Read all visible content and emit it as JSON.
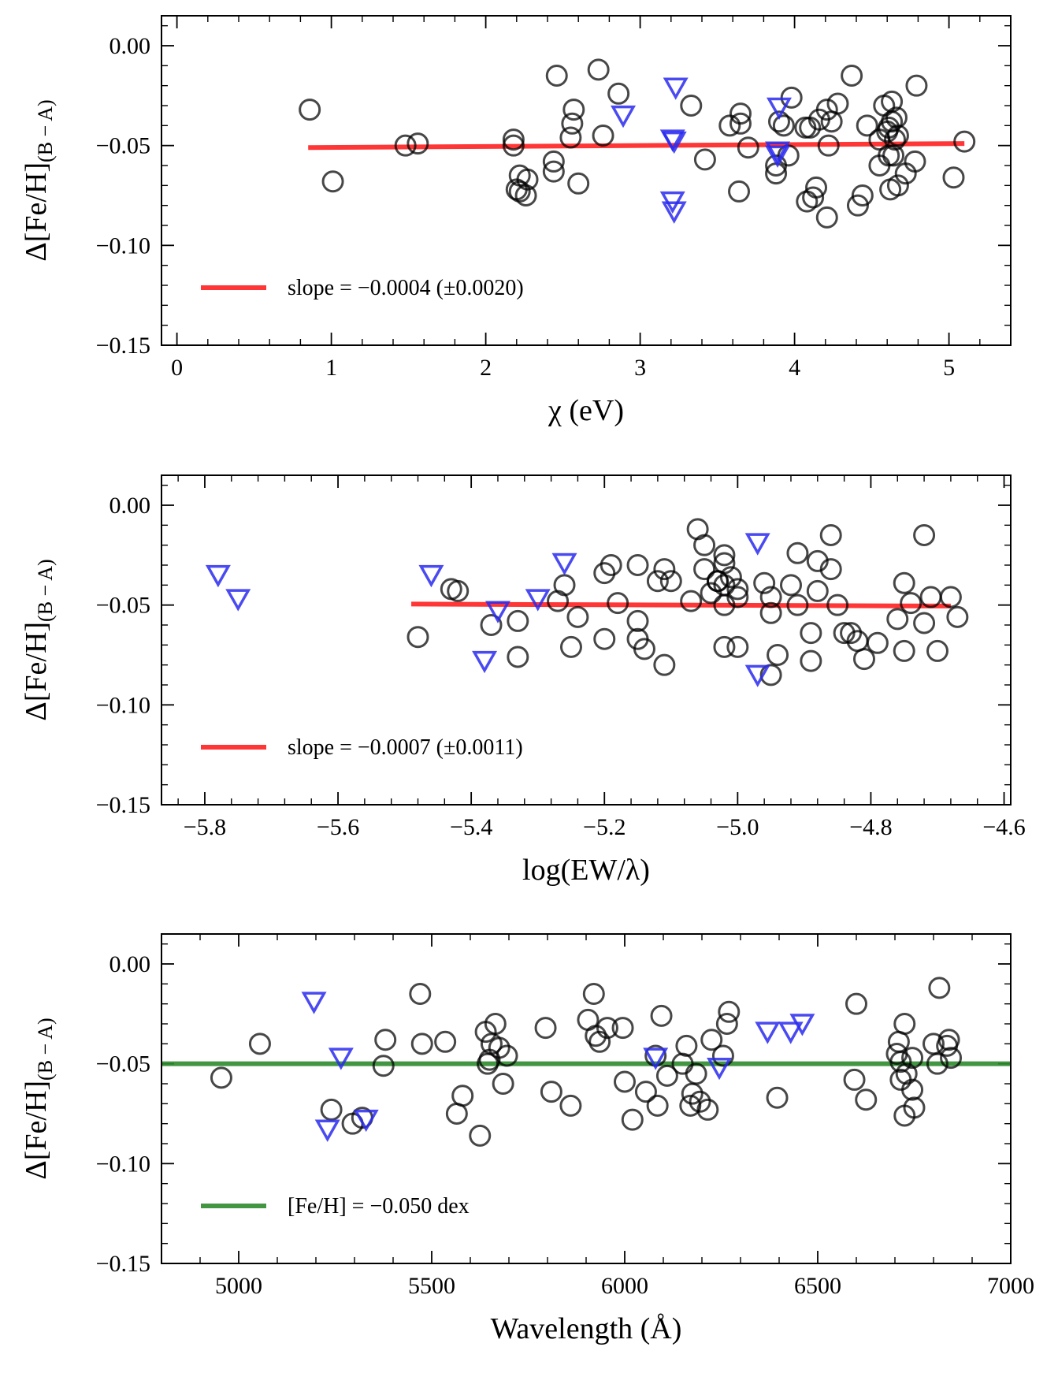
{
  "chart_data": [
    {
      "type": "scatter",
      "xlabel": "χ (eV)",
      "ylabel": "Δ[Fe/H]",
      "ylabel_sub": "(B − A)",
      "xlim": [
        -0.1,
        5.4
      ],
      "ylim": [
        -0.15,
        0.015
      ],
      "xticks": [
        0,
        1,
        2,
        3,
        4,
        5
      ],
      "xtick_labels": [
        "0",
        "1",
        "2",
        "3",
        "4",
        "5"
      ],
      "yticks": [
        0.0,
        -0.05,
        -0.1,
        -0.15
      ],
      "ytick_labels": [
        "0.00",
        "−0.05",
        "−0.10",
        "−0.15"
      ],
      "legend": {
        "label": "slope = −0.0004 (±0.0020)",
        "color": "#ff2020",
        "placement": "lower-left"
      },
      "fit_line": {
        "color": "#ff2020",
        "x": [
          0.85,
          5.1
        ],
        "y": [
          -0.051,
          -0.049
        ]
      },
      "series": [
        {
          "marker": "circle",
          "color": "#000000",
          "points": [
            [
              0.86,
              -0.032
            ],
            [
              1.01,
              -0.068
            ],
            [
              1.48,
              -0.05
            ],
            [
              1.56,
              -0.049
            ],
            [
              2.18,
              -0.047
            ],
            [
              2.18,
              -0.05
            ],
            [
              2.2,
              -0.072
            ],
            [
              2.22,
              -0.073
            ],
            [
              2.22,
              -0.065
            ],
            [
              2.26,
              -0.075
            ],
            [
              2.27,
              -0.067
            ],
            [
              2.44,
              -0.063
            ],
            [
              2.44,
              -0.058
            ],
            [
              2.46,
              -0.015
            ],
            [
              2.55,
              -0.046
            ],
            [
              2.56,
              -0.039
            ],
            [
              2.57,
              -0.032
            ],
            [
              2.6,
              -0.069
            ],
            [
              2.73,
              -0.012
            ],
            [
              2.76,
              -0.045
            ],
            [
              2.86,
              -0.024
            ],
            [
              3.33,
              -0.03
            ],
            [
              3.42,
              -0.057
            ],
            [
              3.58,
              -0.04
            ],
            [
              3.64,
              -0.073
            ],
            [
              3.65,
              -0.034
            ],
            [
              3.65,
              -0.039
            ],
            [
              3.7,
              -0.051
            ],
            [
              3.88,
              -0.064
            ],
            [
              3.88,
              -0.06
            ],
            [
              3.9,
              -0.038
            ],
            [
              3.93,
              -0.04
            ],
            [
              3.96,
              -0.055
            ],
            [
              3.98,
              -0.026
            ],
            [
              4.07,
              -0.041
            ],
            [
              4.08,
              -0.078
            ],
            [
              4.1,
              -0.041
            ],
            [
              4.12,
              -0.076
            ],
            [
              4.14,
              -0.071
            ],
            [
              4.16,
              -0.037
            ],
            [
              4.21,
              -0.032
            ],
            [
              4.21,
              -0.086
            ],
            [
              4.22,
              -0.05
            ],
            [
              4.24,
              -0.038
            ],
            [
              4.28,
              -0.029
            ],
            [
              4.37,
              -0.015
            ],
            [
              4.41,
              -0.08
            ],
            [
              4.44,
              -0.075
            ],
            [
              4.47,
              -0.04
            ],
            [
              4.55,
              -0.06
            ],
            [
              4.55,
              -0.047
            ],
            [
              4.58,
              -0.03
            ],
            [
              4.6,
              -0.043
            ],
            [
              4.61,
              -0.055
            ],
            [
              4.61,
              -0.041
            ],
            [
              4.62,
              -0.072
            ],
            [
              4.63,
              -0.038
            ],
            [
              4.63,
              -0.028
            ],
            [
              4.64,
              -0.055
            ],
            [
              4.65,
              -0.047
            ],
            [
              4.66,
              -0.036
            ],
            [
              4.67,
              -0.045
            ],
            [
              4.67,
              -0.07
            ],
            [
              4.72,
              -0.064
            ],
            [
              4.78,
              -0.058
            ],
            [
              4.79,
              -0.02
            ],
            [
              5.03,
              -0.066
            ],
            [
              5.1,
              -0.048
            ]
          ]
        },
        {
          "marker": "triangle-down",
          "color": "#2a2aee",
          "points": [
            [
              2.89,
              -0.035
            ],
            [
              3.21,
              -0.047
            ],
            [
              3.22,
              -0.048
            ],
            [
              3.21,
              -0.078
            ],
            [
              3.22,
              -0.083
            ],
            [
              3.23,
              -0.021
            ],
            [
              3.9,
              -0.031
            ],
            [
              3.89,
              -0.053
            ],
            [
              3.89,
              -0.055
            ]
          ]
        }
      ]
    },
    {
      "type": "scatter",
      "xlabel": "log(EW/λ)",
      "ylabel": "Δ[Fe/H]",
      "ylabel_sub": "(B − A)",
      "xlim": [
        -5.865,
        -4.59
      ],
      "ylim": [
        -0.15,
        0.015
      ],
      "xticks": [
        -5.8,
        -5.6,
        -5.4,
        -5.2,
        -5.0,
        -4.8,
        -4.6
      ],
      "xtick_labels": [
        "−5.8",
        "−5.6",
        "−5.4",
        "−5.2",
        "−5.0",
        "−4.8",
        "−4.6"
      ],
      "yticks": [
        0.0,
        -0.05,
        -0.1,
        -0.15
      ],
      "ytick_labels": [
        "0.00",
        "−0.05",
        "−0.10",
        "−0.15"
      ],
      "legend": {
        "label": "slope = −0.0007 (±0.0011)",
        "color": "#ff2020",
        "placement": "lower-left"
      },
      "fit_line": {
        "color": "#ff2020",
        "x": [
          -5.49,
          -4.68
        ],
        "y": [
          -0.0495,
          -0.0505
        ]
      },
      "series": [
        {
          "marker": "circle",
          "color": "#000000",
          "points": [
            [
              -5.48,
              -0.066
            ],
            [
              -5.43,
              -0.042
            ],
            [
              -5.42,
              -0.043
            ],
            [
              -5.37,
              -0.06
            ],
            [
              -5.33,
              -0.058
            ],
            [
              -5.33,
              -0.076
            ],
            [
              -5.27,
              -0.048
            ],
            [
              -5.26,
              -0.04
            ],
            [
              -5.25,
              -0.071
            ],
            [
              -5.24,
              -0.056
            ],
            [
              -5.2,
              -0.034
            ],
            [
              -5.2,
              -0.067
            ],
            [
              -5.19,
              -0.03
            ],
            [
              -5.18,
              -0.049
            ],
            [
              -5.15,
              -0.03
            ],
            [
              -5.15,
              -0.058
            ],
            [
              -5.15,
              -0.067
            ],
            [
              -5.14,
              -0.072
            ],
            [
              -5.12,
              -0.038
            ],
            [
              -5.11,
              -0.032
            ],
            [
              -5.11,
              -0.08
            ],
            [
              -5.1,
              -0.038
            ],
            [
              -5.07,
              -0.048
            ],
            [
              -5.06,
              -0.012
            ],
            [
              -5.05,
              -0.02
            ],
            [
              -5.05,
              -0.032
            ],
            [
              -5.04,
              -0.044
            ],
            [
              -5.03,
              -0.038
            ],
            [
              -5.03,
              -0.038
            ],
            [
              -5.02,
              -0.04
            ],
            [
              -5.02,
              -0.05
            ],
            [
              -5.02,
              -0.025
            ],
            [
              -5.02,
              -0.029
            ],
            [
              -5.02,
              -0.071
            ],
            [
              -5.01,
              -0.036
            ],
            [
              -5.0,
              -0.071
            ],
            [
              -5.0,
              -0.042
            ],
            [
              -5.0,
              -0.046
            ],
            [
              -4.96,
              -0.039
            ],
            [
              -4.95,
              -0.054
            ],
            [
              -4.95,
              -0.046
            ],
            [
              -4.95,
              -0.085
            ],
            [
              -4.94,
              -0.075
            ],
            [
              -4.92,
              -0.04
            ],
            [
              -4.91,
              -0.024
            ],
            [
              -4.91,
              -0.05
            ],
            [
              -4.89,
              -0.064
            ],
            [
              -4.89,
              -0.078
            ],
            [
              -4.88,
              -0.028
            ],
            [
              -4.88,
              -0.043
            ],
            [
              -4.86,
              -0.015
            ],
            [
              -4.86,
              -0.032
            ],
            [
              -4.85,
              -0.05
            ],
            [
              -4.84,
              -0.064
            ],
            [
              -4.83,
              -0.064
            ],
            [
              -4.82,
              -0.068
            ],
            [
              -4.81,
              -0.077
            ],
            [
              -4.79,
              -0.069
            ],
            [
              -4.76,
              -0.057
            ],
            [
              -4.75,
              -0.039
            ],
            [
              -4.75,
              -0.073
            ],
            [
              -4.74,
              -0.049
            ],
            [
              -4.72,
              -0.015
            ],
            [
              -4.72,
              -0.059
            ],
            [
              -4.71,
              -0.046
            ],
            [
              -4.7,
              -0.073
            ],
            [
              -4.68,
              -0.046
            ],
            [
              -4.67,
              -0.056
            ]
          ]
        },
        {
          "marker": "triangle-down",
          "color": "#2a2aee",
          "points": [
            [
              -5.78,
              -0.035
            ],
            [
              -5.75,
              -0.047
            ],
            [
              -5.46,
              -0.035
            ],
            [
              -5.38,
              -0.078
            ],
            [
              -5.36,
              -0.053
            ],
            [
              -5.3,
              -0.047
            ],
            [
              -5.26,
              -0.029
            ],
            [
              -4.97,
              -0.019
            ],
            [
              -4.97,
              -0.085
            ]
          ]
        }
      ]
    },
    {
      "type": "scatter",
      "xlabel": "Wavelength (Å)",
      "ylabel": "Δ[Fe/H]",
      "ylabel_sub": "(B − A)",
      "xlim": [
        4800,
        7000
      ],
      "ylim": [
        -0.15,
        0.015
      ],
      "xticks": [
        5000,
        5500,
        6000,
        6500,
        7000
      ],
      "xtick_labels": [
        "5000",
        "5500",
        "6000",
        "6500",
        "7000"
      ],
      "yticks": [
        0.0,
        -0.05,
        -0.1,
        -0.15
      ],
      "ytick_labels": [
        "0.00",
        "−0.05",
        "−0.10",
        "−0.15"
      ],
      "legend": {
        "label": "[Fe/H] = −0.050 dex",
        "color": "#2e8b2e",
        "placement": "lower-left"
      },
      "fit_line": {
        "color": "#2e8b2e",
        "x": [
          4800,
          7000
        ],
        "y": [
          -0.05,
          -0.05
        ]
      },
      "series": [
        {
          "marker": "circle",
          "color": "#000000",
          "points": [
            [
              4955,
              -0.057
            ],
            [
              5055,
              -0.04
            ],
            [
              5240,
              -0.073
            ],
            [
              5295,
              -0.08
            ],
            [
              5320,
              -0.077
            ],
            [
              5375,
              -0.051
            ],
            [
              5380,
              -0.038
            ],
            [
              5470,
              -0.015
            ],
            [
              5475,
              -0.04
            ],
            [
              5535,
              -0.039
            ],
            [
              5565,
              -0.075
            ],
            [
              5580,
              -0.066
            ],
            [
              5625,
              -0.086
            ],
            [
              5640,
              -0.034
            ],
            [
              5645,
              -0.05
            ],
            [
              5650,
              -0.048
            ],
            [
              5655,
              -0.04
            ],
            [
              5665,
              -0.03
            ],
            [
              5675,
              -0.042
            ],
            [
              5685,
              -0.06
            ],
            [
              5695,
              -0.046
            ],
            [
              5795,
              -0.032
            ],
            [
              5810,
              -0.064
            ],
            [
              5860,
              -0.071
            ],
            [
              5905,
              -0.028
            ],
            [
              5920,
              -0.015
            ],
            [
              5925,
              -0.036
            ],
            [
              5935,
              -0.039
            ],
            [
              5955,
              -0.032
            ],
            [
              5995,
              -0.032
            ],
            [
              6000,
              -0.059
            ],
            [
              6020,
              -0.078
            ],
            [
              6055,
              -0.064
            ],
            [
              6080,
              -0.046
            ],
            [
              6085,
              -0.071
            ],
            [
              6095,
              -0.026
            ],
            [
              6110,
              -0.056
            ],
            [
              6150,
              -0.05
            ],
            [
              6160,
              -0.041
            ],
            [
              6170,
              -0.071
            ],
            [
              6175,
              -0.065
            ],
            [
              6185,
              -0.055
            ],
            [
              6195,
              -0.069
            ],
            [
              6215,
              -0.073
            ],
            [
              6225,
              -0.038
            ],
            [
              6255,
              -0.046
            ],
            [
              6265,
              -0.03
            ],
            [
              6270,
              -0.024
            ],
            [
              6395,
              -0.067
            ],
            [
              6595,
              -0.058
            ],
            [
              6600,
              -0.02
            ],
            [
              6625,
              -0.068
            ],
            [
              6705,
              -0.045
            ],
            [
              6710,
              -0.039
            ],
            [
              6715,
              -0.058
            ],
            [
              6715,
              -0.049
            ],
            [
              6725,
              -0.03
            ],
            [
              6725,
              -0.076
            ],
            [
              6730,
              -0.055
            ],
            [
              6745,
              -0.047
            ],
            [
              6745,
              -0.063
            ],
            [
              6750,
              -0.072
            ],
            [
              6800,
              -0.04
            ],
            [
              6810,
              -0.05
            ],
            [
              6815,
              -0.012
            ],
            [
              6835,
              -0.041
            ],
            [
              6840,
              -0.038
            ],
            [
              6845,
              -0.047
            ]
          ]
        },
        {
          "marker": "triangle-down",
          "color": "#2a2aee",
          "points": [
            [
              5195,
              -0.019
            ],
            [
              5230,
              -0.083
            ],
            [
              5265,
              -0.047
            ],
            [
              5330,
              -0.078
            ],
            [
              6080,
              -0.047
            ],
            [
              6245,
              -0.052
            ],
            [
              6370,
              -0.034
            ],
            [
              6430,
              -0.034
            ],
            [
              6460,
              -0.03
            ]
          ]
        }
      ]
    }
  ]
}
